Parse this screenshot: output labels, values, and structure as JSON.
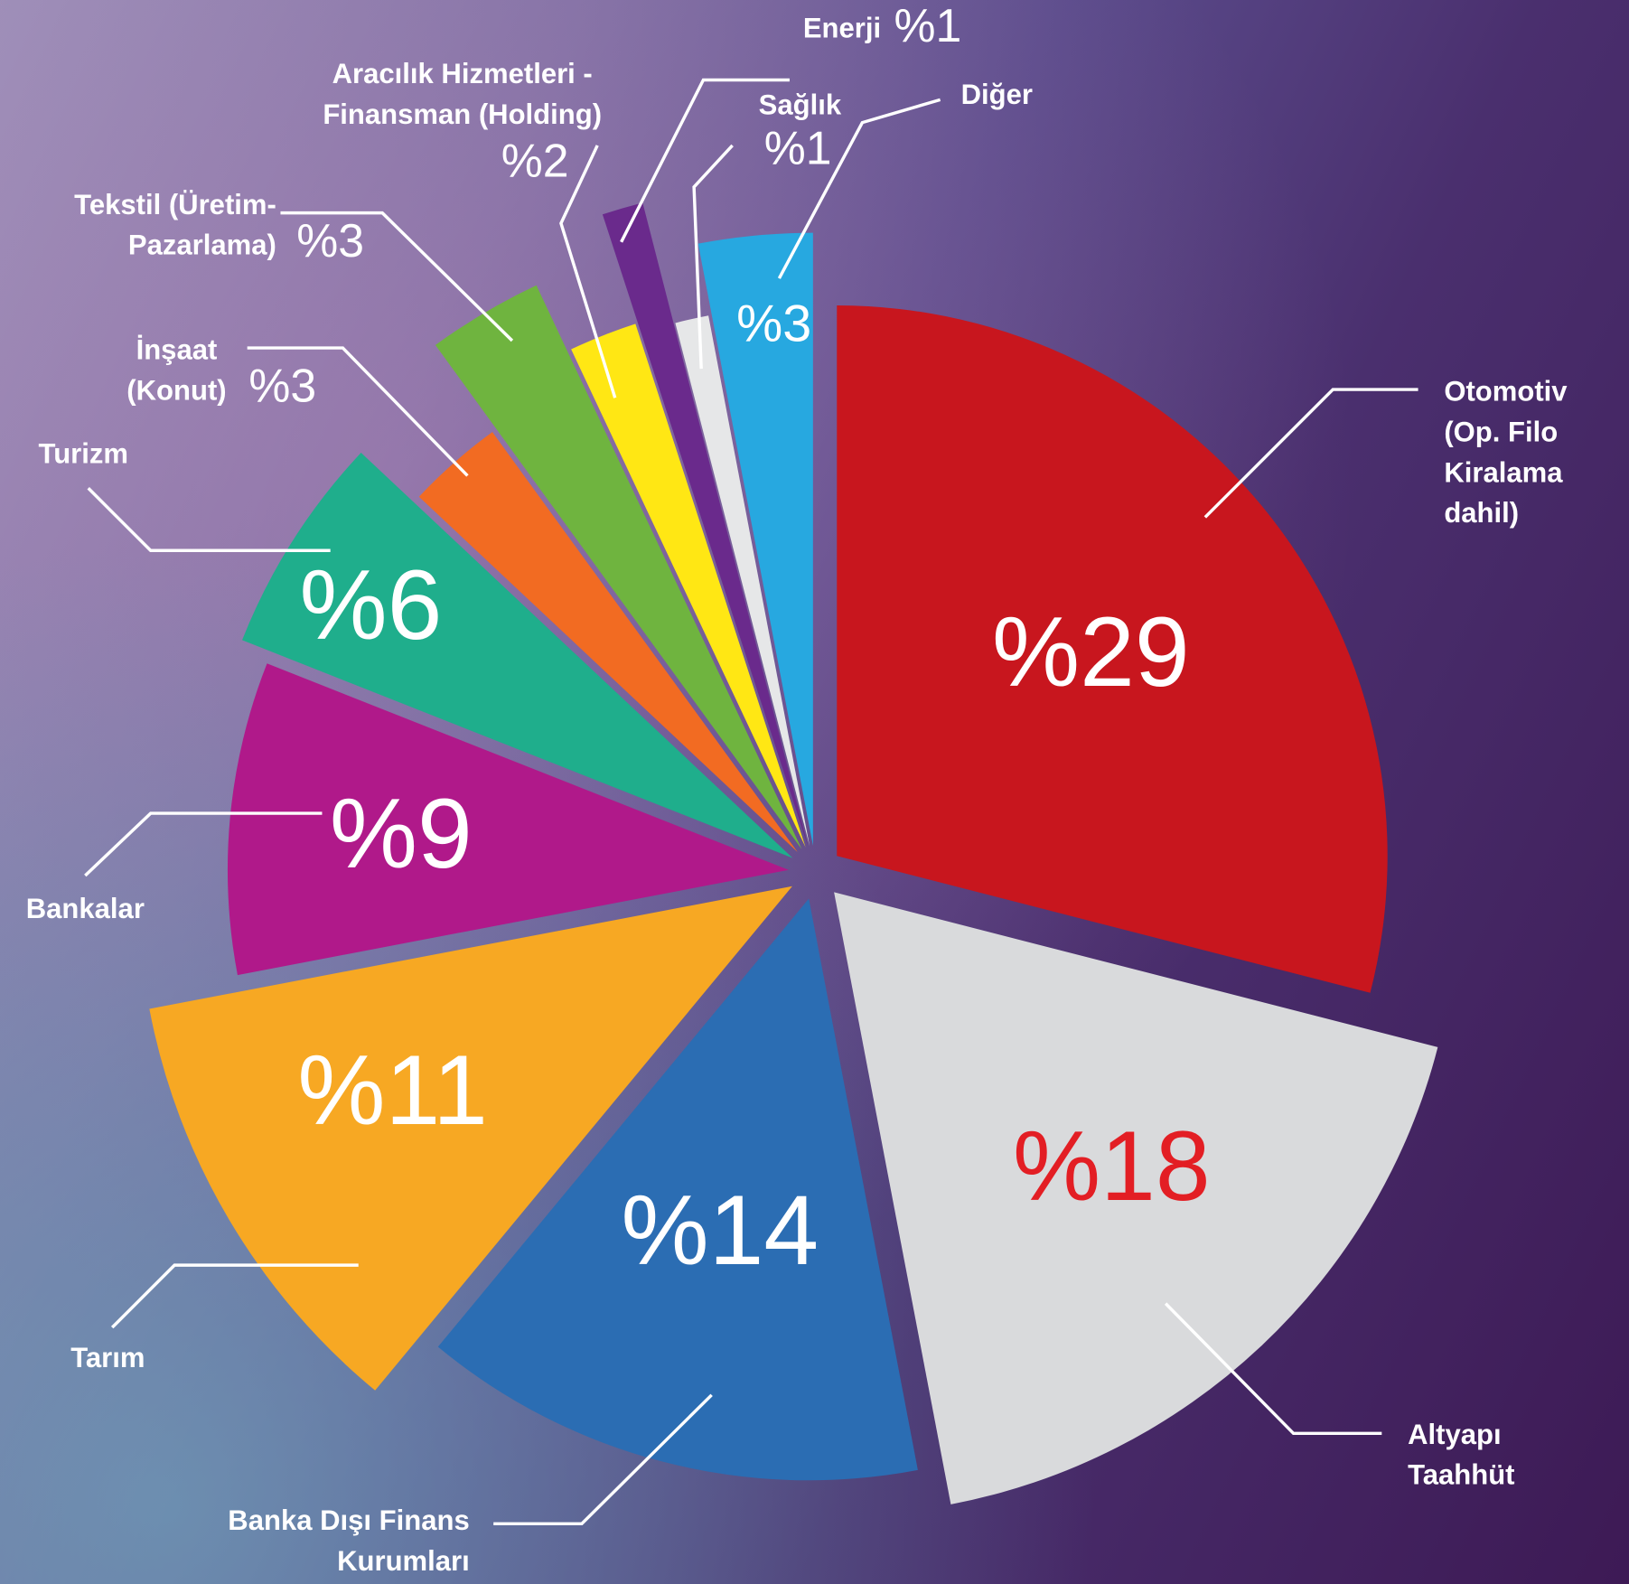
{
  "chart_data": {
    "type": "pie",
    "categories": [
      "Otomotiv (Op. Filo Kiralama dahil)",
      "Altyapı Taahhüt",
      "Banka Dışı Finans Kurumları",
      "Tarım",
      "Bankalar",
      "Turizm",
      "İnşaat (Konut)",
      "Tekstil (Üretim-Pazarlama)",
      "Aracılık Hizmetleri - Finansman (Holding)",
      "Enerji",
      "Sağlık",
      "Diğer"
    ],
    "values": [
      29,
      18,
      14,
      11,
      9,
      6,
      3,
      3,
      2,
      1,
      1,
      3
    ],
    "value_labels": [
      "%29",
      "%18",
      "%14",
      "%11",
      "%9",
      "%6",
      "%3",
      "%3",
      "%2",
      "%1",
      "%1",
      "%3"
    ],
    "colors": [
      "#c8161e",
      "#d9dadc",
      "#2b6db3",
      "#f7a823",
      "#b0198a",
      "#1fae8c",
      "#f26b22",
      "#6fb43f",
      "#ffe714",
      "#6a2a8c",
      "#e6e7e8",
      "#27a8e0"
    ]
  }
}
